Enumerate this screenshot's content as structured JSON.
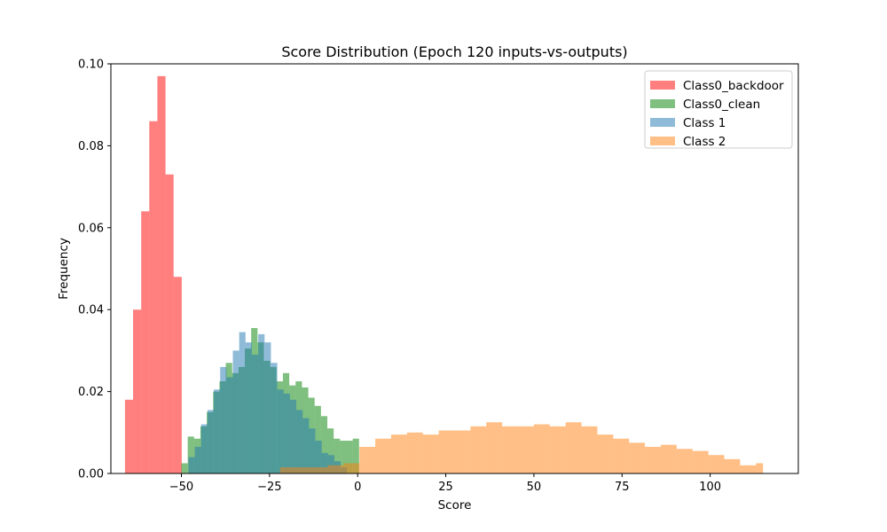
{
  "chart_data": {
    "type": "histogram",
    "title": "Score Distribution (Epoch 120 inputs-vs-outputs)",
    "xlabel": "Score",
    "ylabel": "Frequency",
    "xlim": [
      -70,
      125
    ],
    "ylim": [
      0,
      0.1
    ],
    "xticks": [
      -50,
      -25,
      0,
      25,
      50,
      75,
      100
    ],
    "yticks": [
      0.0,
      0.02,
      0.04,
      0.06,
      0.08,
      0.1
    ],
    "xtick_labels": [
      "−50",
      "−25",
      "0",
      "25",
      "50",
      "75",
      "100"
    ],
    "ytick_labels": [
      "0.00",
      "0.02",
      "0.04",
      "0.06",
      "0.08",
      "0.10"
    ],
    "grid": false,
    "legend_position": "top-right",
    "series": [
      {
        "name": "Class0_backdoor",
        "color": "#ff0000",
        "alpha": 0.5,
        "bin_edges": [
          -66,
          -63.7,
          -61.4,
          -59.1,
          -56.8,
          -54.5,
          -52.2,
          -49.9
        ],
        "values": [
          0.018,
          0.04,
          0.064,
          0.086,
          0.097,
          0.073,
          0.048
        ]
      },
      {
        "name": "Class0_clean",
        "color": "#008000",
        "alpha": 0.5,
        "bin_edges": [
          -50,
          -48.2,
          -46.4,
          -44.6,
          -42.8,
          -41.0,
          -39.2,
          -37.4,
          -35.6,
          -33.8,
          -32.0,
          -30.2,
          -28.4,
          -26.6,
          -24.8,
          -23.0,
          -21.2,
          -19.4,
          -17.6,
          -15.8,
          -14.0,
          -12.2,
          -10.4,
          -8.6,
          -6.8,
          -5.0,
          -3.2,
          -1.4,
          0.4
        ],
        "values": [
          0.0025,
          0.009,
          0.0085,
          0.0115,
          0.015,
          0.02,
          0.0225,
          0.027,
          0.0245,
          0.026,
          0.0305,
          0.0355,
          0.032,
          0.0275,
          0.026,
          0.0225,
          0.0245,
          0.0215,
          0.0225,
          0.021,
          0.0185,
          0.0165,
          0.014,
          0.011,
          0.0085,
          0.008,
          0.008,
          0.0085
        ]
      },
      {
        "name": "Class 1",
        "color": "#1f77b4",
        "alpha": 0.5,
        "bin_edges": [
          -48,
          -46.2,
          -44.4,
          -42.6,
          -40.8,
          -39.0,
          -37.2,
          -35.4,
          -33.6,
          -31.8,
          -30.0,
          -28.2,
          -26.4,
          -24.6,
          -22.8,
          -21.0,
          -19.2,
          -17.4,
          -15.6,
          -13.8,
          -12.0,
          -10.2,
          -8.4,
          -6.6,
          -4.8,
          -3.0
        ],
        "values": [
          0.004,
          0.0065,
          0.012,
          0.0155,
          0.0205,
          0.026,
          0.0235,
          0.03,
          0.0345,
          0.032,
          0.029,
          0.034,
          0.032,
          0.027,
          0.0205,
          0.0195,
          0.018,
          0.0155,
          0.0135,
          0.011,
          0.008,
          0.005,
          0.0045,
          0.003,
          0.0015
        ]
      },
      {
        "name": "Class 2",
        "color": "#ff7f0e",
        "alpha": 0.5,
        "bin_edges": [
          -22,
          -17.5,
          -13,
          -8.5,
          -4,
          0.5,
          5,
          9.5,
          14,
          18.5,
          23,
          27.5,
          32,
          36.5,
          41,
          45.5,
          50,
          54.5,
          59,
          63.5,
          68,
          72.5,
          77,
          81.5,
          86,
          90.5,
          95,
          99.5,
          104,
          108.5,
          113,
          115
        ],
        "values": [
          0.0015,
          0.0015,
          0.0015,
          0.002,
          0.0025,
          0.0065,
          0.0085,
          0.0095,
          0.01,
          0.0095,
          0.0105,
          0.0105,
          0.0115,
          0.0125,
          0.0115,
          0.0115,
          0.012,
          0.0115,
          0.0125,
          0.0115,
          0.0095,
          0.0085,
          0.0075,
          0.0065,
          0.007,
          0.006,
          0.0055,
          0.0045,
          0.0035,
          0.002,
          0.0025
        ]
      }
    ]
  }
}
